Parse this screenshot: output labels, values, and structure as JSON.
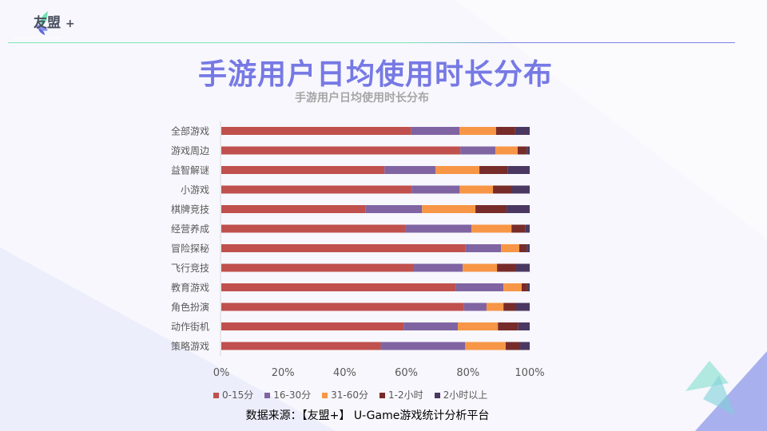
{
  "logo": {
    "text": "友盟",
    "plus": "+",
    "url": "www.umeng.com"
  },
  "title": "手游用户日均使用时长分布",
  "source": "数据来源：【友盟+】 U-Game游戏统计分析平台",
  "chart_data": {
    "type": "bar",
    "orientation": "horizontal",
    "stacked": "percent",
    "title": "手游用户日均使用时长分布",
    "categories": [
      "全部游戏",
      "游戏周边",
      "益智解谜",
      "小游戏",
      "棋牌竞技",
      "经营养成",
      "冒险探秘",
      "飞行竞技",
      "教育游戏",
      "角色扮演",
      "动作街机",
      "策略游戏"
    ],
    "series": [
      {
        "name": "0-15分",
        "color": "#c0504d",
        "values": [
          61.5,
          77.5,
          52.9,
          61.7,
          46.7,
          59.6,
          79.1,
          62.3,
          76.0,
          78.7,
          59.1,
          51.7
        ]
      },
      {
        "name": "16-30分",
        "color": "#8064a2",
        "values": [
          15.7,
          11.4,
          16.6,
          15.6,
          18.4,
          21.5,
          11.6,
          16.0,
          15.5,
          7.3,
          17.6,
          27.4
        ]
      },
      {
        "name": "31-60分",
        "color": "#f79646",
        "values": [
          11.9,
          7.2,
          14.2,
          10.8,
          17.3,
          13.0,
          5.9,
          11.1,
          5.9,
          5.5,
          13.0,
          13.1
        ]
      },
      {
        "name": "1-2小时",
        "color": "#772c2a",
        "values": [
          6.2,
          2.9,
          9.1,
          6.2,
          10.1,
          4.4,
          2.4,
          6.2,
          1.8,
          4.1,
          6.6,
          4.7
        ]
      },
      {
        "name": "2小时以上",
        "color": "#4b3862",
        "values": [
          4.7,
          1.0,
          7.2,
          5.7,
          7.5,
          1.5,
          1.0,
          4.4,
          0.8,
          4.4,
          3.7,
          3.1
        ]
      }
    ],
    "xlim": [
      0,
      100
    ],
    "xticks": [
      "0%",
      "20%",
      "40%",
      "60%",
      "80%",
      "100%"
    ],
    "grid": false,
    "legend": "bottom"
  }
}
